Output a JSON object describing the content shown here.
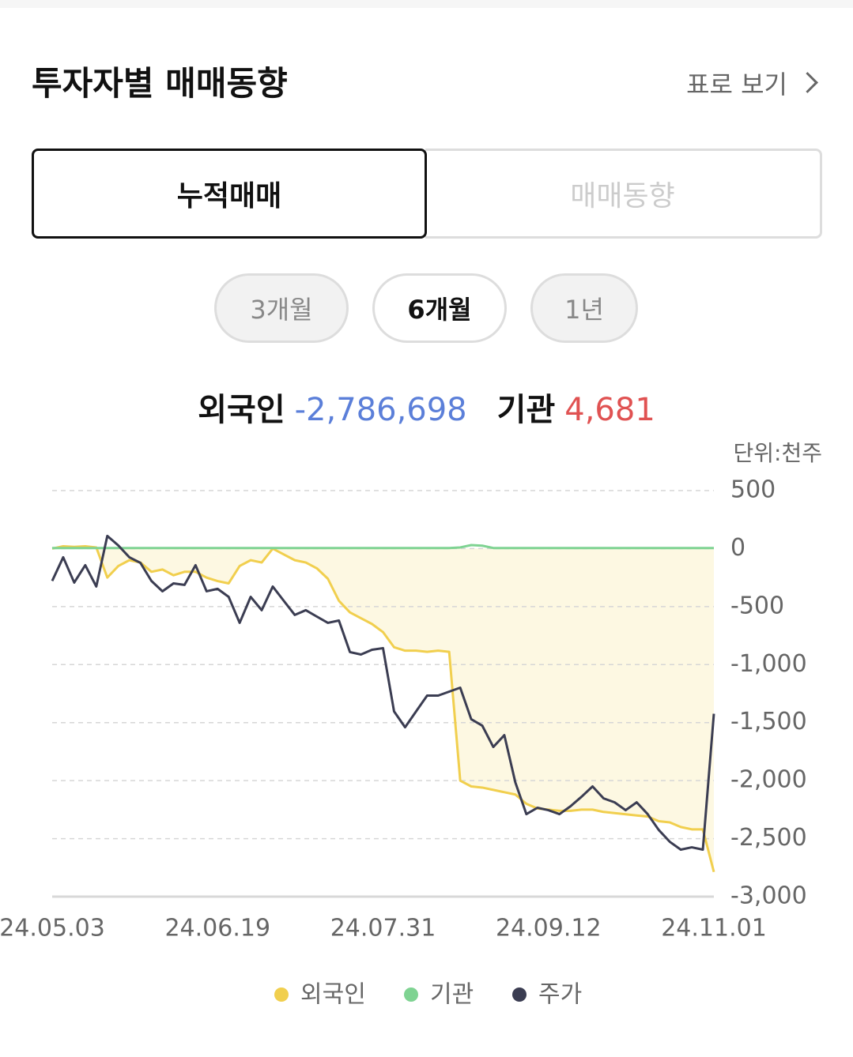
{
  "header": {
    "title": "투자자별 매매동향",
    "link": "표로 보기"
  },
  "tabs": [
    "누적매매",
    "매매동향"
  ],
  "periods": [
    "3개월",
    "6개월",
    "1년"
  ],
  "summary": [
    {
      "label": "외국인",
      "value": "-2,786,698",
      "color": "#5b7fd9"
    },
    {
      "label": "기관",
      "value": "4,681",
      "color": "#e05252"
    }
  ],
  "chart_data": {
    "type": "line",
    "unit": "단위:천주",
    "categories": [
      "24.05.03",
      null,
      null,
      null,
      null,
      null,
      null,
      null,
      null,
      null,
      null,
      null,
      null,
      null,
      null,
      "24.06.19",
      null,
      null,
      null,
      null,
      null,
      null,
      null,
      null,
      null,
      null,
      null,
      null,
      null,
      null,
      "24.07.31",
      null,
      null,
      null,
      null,
      null,
      null,
      null,
      null,
      null,
      null,
      null,
      null,
      null,
      null,
      "24.09.12",
      null,
      null,
      null,
      null,
      null,
      null,
      null,
      null,
      null,
      null,
      null,
      null,
      null,
      null,
      "24.11.01"
    ],
    "ylim": [
      -3000,
      500
    ],
    "yticks": [
      500,
      0,
      -500,
      {
        "value": -1000,
        "label": "-1,000"
      },
      {
        "value": -1500,
        "label": "-1,500"
      },
      {
        "value": -2000,
        "label": "-2,000"
      },
      {
        "value": -2500,
        "label": "-2,500"
      },
      {
        "value": -3000,
        "label": "-3,000"
      }
    ],
    "grid": true,
    "series": [
      {
        "name": "외국인",
        "color": "#f1cf4e",
        "area_color": "#fdf8e2",
        "values": [
          0,
          20,
          15,
          20,
          10,
          -250,
          -150,
          -100,
          -120,
          -200,
          -180,
          -230,
          -200,
          -200,
          -250,
          -280,
          -300,
          -150,
          -100,
          -120,
          0,
          -50,
          -100,
          -120,
          -170,
          -260,
          -450,
          -550,
          -600,
          -650,
          -720,
          -850,
          -880,
          -880,
          -890,
          -880,
          -890,
          -2000,
          -2050,
          -2060,
          -2080,
          -2100,
          -2120,
          -2200,
          -2240,
          -2250,
          -2260,
          -2260,
          -2250,
          -2250,
          -2270,
          -2280,
          -2290,
          -2300,
          -2310,
          -2350,
          -2360,
          -2400,
          -2420,
          -2420,
          -2787
        ]
      },
      {
        "name": "기관",
        "color": "#7fd392",
        "values": [
          5,
          5,
          5,
          5,
          5,
          5,
          5,
          5,
          5,
          5,
          5,
          5,
          5,
          5,
          5,
          5,
          5,
          5,
          5,
          5,
          5,
          5,
          5,
          5,
          5,
          5,
          5,
          5,
          5,
          5,
          5,
          5,
          5,
          5,
          5,
          5,
          5,
          10,
          30,
          25,
          5,
          5,
          5,
          5,
          5,
          5,
          5,
          5,
          5,
          5,
          5,
          5,
          5,
          5,
          5,
          5,
          5,
          5,
          5,
          5,
          5
        ]
      },
      {
        "name": "주가",
        "color": "#3b3d52",
        "values": [
          -279,
          -75,
          -293,
          -143,
          -327,
          109,
          27,
          -75,
          -123,
          -279,
          -368,
          -300,
          -313,
          -143,
          -368,
          -347,
          -416,
          -640,
          -416,
          -531,
          -327,
          -450,
          -572,
          -531,
          -586,
          -640,
          -620,
          -892,
          -913,
          -872,
          -858,
          -1403,
          -1540,
          -1403,
          -1267,
          -1267,
          -1233,
          -1199,
          -1471,
          -1526,
          -1710,
          -1608,
          -2016,
          -2289,
          -2234,
          -2255,
          -2289,
          -2221,
          -2139,
          -2050,
          -2153,
          -2187,
          -2255,
          -2187,
          -2289,
          -2425,
          -2527,
          -2595,
          -2575,
          -2595,
          -1424
        ]
      }
    ]
  }
}
